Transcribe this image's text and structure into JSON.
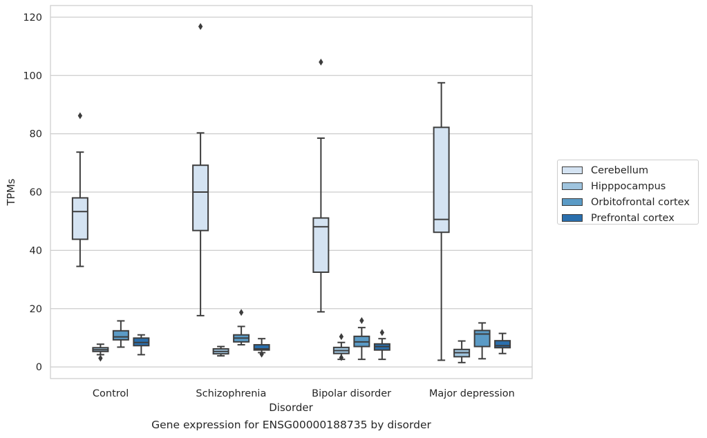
{
  "caption": "Gene expression for ENSG00000188735 by disorder",
  "chart_data": {
    "type": "box",
    "title": "",
    "xlabel": "Disorder",
    "ylabel": "TPMs",
    "ylim": [
      -4,
      124
    ],
    "yticks": [
      0,
      20,
      40,
      60,
      80,
      100,
      120
    ],
    "grid": true,
    "legend_position": "right",
    "categories": [
      "Control",
      "Schizophrenia",
      "Bipolar disorder",
      "Major depression"
    ],
    "series": [
      {
        "name": "Cerebellum",
        "color": "#d4e3f2",
        "boxes": [
          {
            "whislo": 34.5,
            "q1": 43.8,
            "med": 53.3,
            "q3": 58.0,
            "whishi": 73.7,
            "fliers": [
              86.2
            ]
          },
          {
            "whislo": 17.6,
            "q1": 46.8,
            "med": 60.0,
            "q3": 69.2,
            "whishi": 80.3,
            "fliers": [
              116.8
            ]
          },
          {
            "whislo": 18.9,
            "q1": 32.5,
            "med": 48.1,
            "q3": 51.1,
            "whishi": 78.5,
            "fliers": [
              104.6
            ]
          },
          {
            "whislo": 2.3,
            "q1": 46.2,
            "med": 50.6,
            "q3": 82.2,
            "whishi": 97.5,
            "fliers": []
          }
        ]
      },
      {
        "name": "Hipppocampus",
        "color": "#9fc4de",
        "boxes": [
          {
            "whislo": 4.2,
            "q1": 5.3,
            "med": 5.9,
            "q3": 6.6,
            "whishi": 7.8,
            "fliers": [
              3.0
            ]
          },
          {
            "whislo": 3.8,
            "q1": 4.5,
            "med": 5.3,
            "q3": 6.2,
            "whishi": 7.0,
            "fliers": []
          },
          {
            "whislo": 2.6,
            "q1": 4.6,
            "med": 5.6,
            "q3": 6.7,
            "whishi": 8.4,
            "fliers": [
              3.2,
              10.4
            ]
          },
          {
            "whislo": 1.5,
            "q1": 3.5,
            "med": 4.9,
            "q3": 6.0,
            "whishi": 8.9,
            "fliers": []
          }
        ]
      },
      {
        "name": "Orbitofrontal cortex",
        "color": "#5b9bc6",
        "boxes": [
          {
            "whislo": 6.8,
            "q1": 9.3,
            "med": 10.3,
            "q3": 12.4,
            "whishi": 15.8,
            "fliers": []
          },
          {
            "whislo": 7.6,
            "q1": 8.6,
            "med": 9.9,
            "q3": 11.0,
            "whishi": 13.9,
            "fliers": [
              18.7
            ]
          },
          {
            "whislo": 2.6,
            "q1": 7.0,
            "med": 8.6,
            "q3": 10.5,
            "whishi": 13.5,
            "fliers": [
              15.9
            ]
          },
          {
            "whislo": 2.8,
            "q1": 7.0,
            "med": 11.3,
            "q3": 12.5,
            "whishi": 15.1,
            "fliers": []
          }
        ]
      },
      {
        "name": "Prefrontal cortex",
        "color": "#2a6fad",
        "boxes": [
          {
            "whislo": 4.2,
            "q1": 7.3,
            "med": 8.4,
            "q3": 9.9,
            "whishi": 11.0,
            "fliers": []
          },
          {
            "whislo": 4.9,
            "q1": 5.8,
            "med": 6.2,
            "q3": 7.6,
            "whishi": 9.7,
            "fliers": [
              4.4
            ]
          },
          {
            "whislo": 2.6,
            "q1": 5.8,
            "med": 7.0,
            "q3": 7.9,
            "whishi": 9.7,
            "fliers": [
              11.8
            ]
          },
          {
            "whislo": 4.6,
            "q1": 6.6,
            "med": 7.3,
            "q3": 9.0,
            "whishi": 11.5,
            "fliers": []
          }
        ]
      }
    ]
  }
}
